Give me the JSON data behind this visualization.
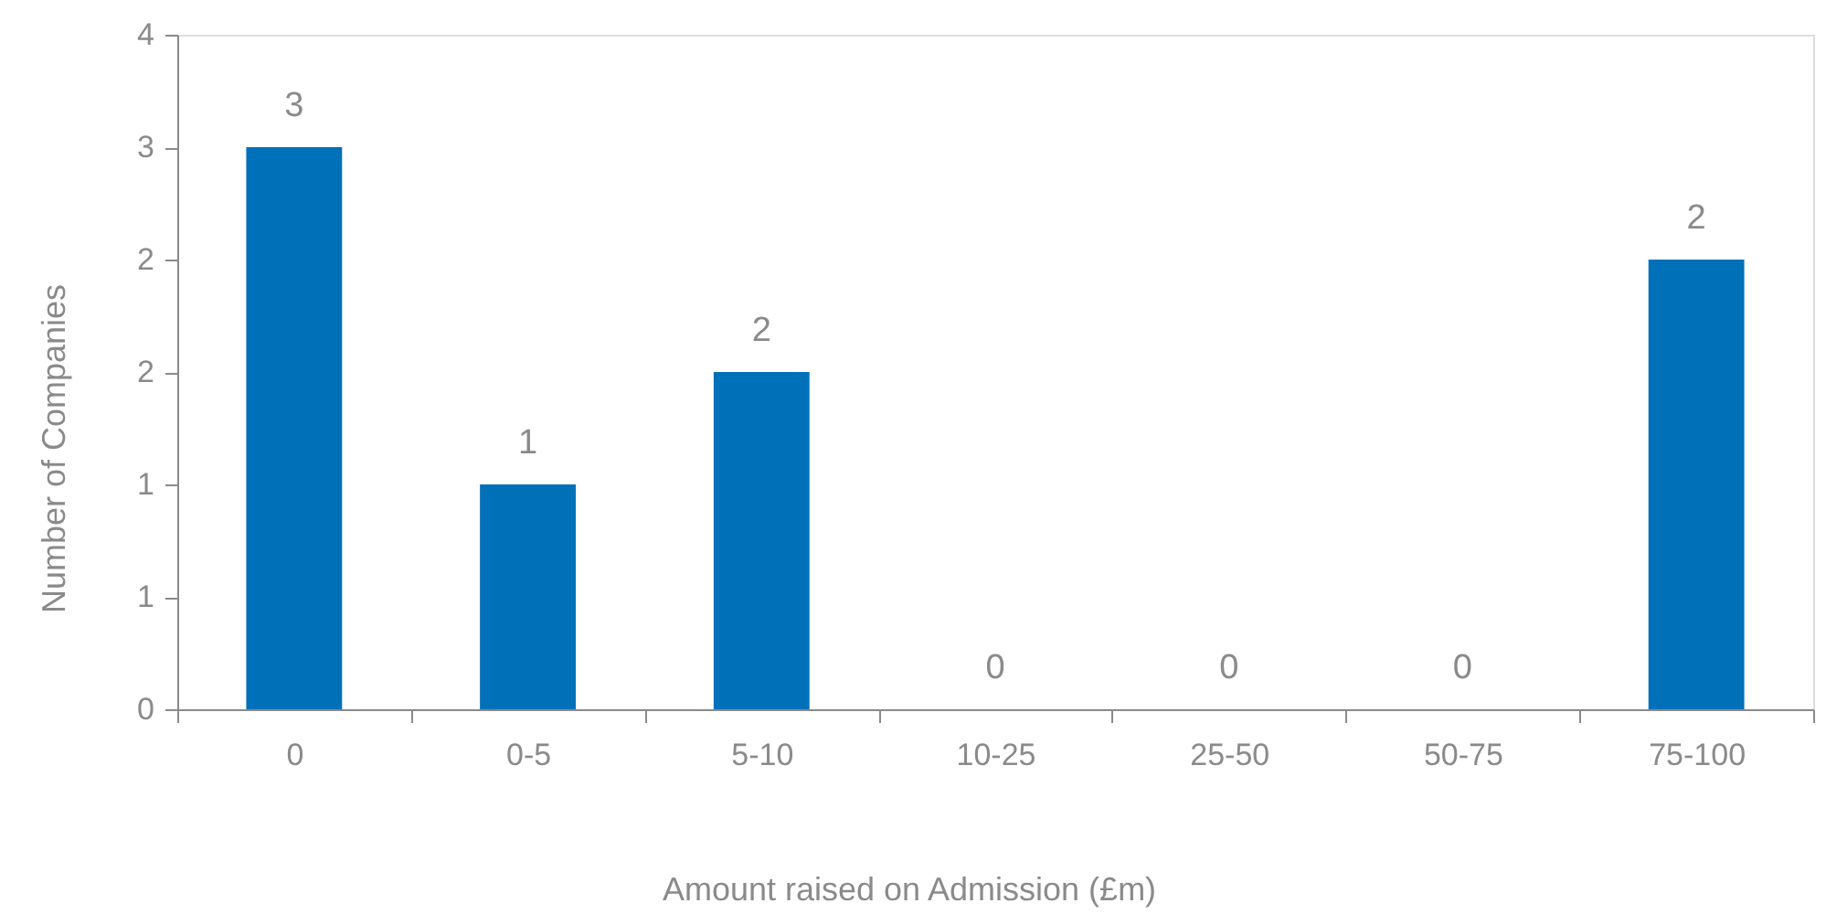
{
  "chart_data": {
    "type": "bar",
    "xlabel": "Amount raised on Admission (£m)",
    "ylabel": "Number of Companies",
    "categories": [
      "0",
      "0-5",
      "5-10",
      "10-25",
      "25-50",
      "50-75",
      "75-100"
    ],
    "values": [
      3,
      1.2,
      1.8,
      0,
      0,
      0,
      2.4
    ],
    "value_labels": [
      "3",
      "1",
      "2",
      "0",
      "0",
      "0",
      "2"
    ],
    "color": "#0070b8",
    "ylim": [
      0,
      3.6
    ],
    "yticks": [
      0,
      {
        "value": 0.6,
        "label": "1"
      },
      {
        "value": 1.2,
        "label": "1"
      },
      {
        "value": 1.8,
        "label": "2"
      },
      {
        "value": 2.4,
        "label": "2"
      },
      3,
      {
        "value": 3.6,
        "label": "4"
      }
    ]
  }
}
